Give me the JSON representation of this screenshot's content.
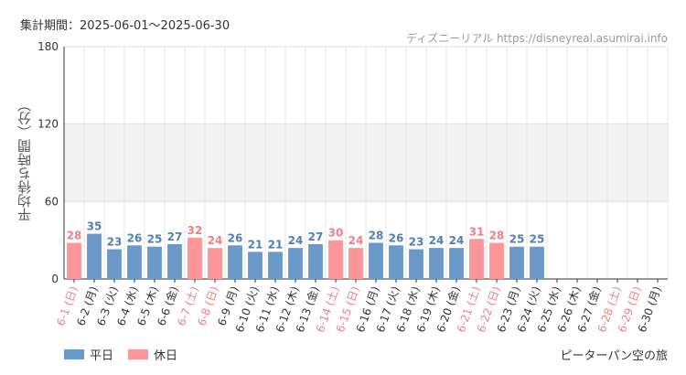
{
  "header": {
    "period": "集計期間：2025-06-01～2025-06-30",
    "credit": "ディズニーリアル https://disneyreal.asumirai.info"
  },
  "footer": {
    "attraction": "ピーターパン空の旅"
  },
  "colors": {
    "weekday": "#6a98c8",
    "holiday": "#fc9699",
    "weekday_text": "#4f7fb3",
    "holiday_text": "#f07f84"
  },
  "chart_data": {
    "type": "bar",
    "ylabel": "平均待ち時間（分）",
    "ylim": [
      0,
      180
    ],
    "yticks": [
      0,
      60,
      120,
      180
    ],
    "legend": [
      {
        "name": "平日",
        "type": "weekday"
      },
      {
        "name": "休日",
        "type": "holiday"
      }
    ],
    "categories": [
      "6-1 (日)",
      "6-2 (月)",
      "6-3 (火)",
      "6-4 (水)",
      "6-5 (木)",
      "6-6 (金)",
      "6-7 (土)",
      "6-8 (日)",
      "6-9 (月)",
      "6-10 (火)",
      "6-11 (水)",
      "6-12 (木)",
      "6-13 (金)",
      "6-14 (土)",
      "6-15 (日)",
      "6-16 (月)",
      "6-17 (火)",
      "6-18 (水)",
      "6-19 (木)",
      "6-20 (金)",
      "6-21 (土)",
      "6-22 (日)",
      "6-23 (月)",
      "6-24 (火)",
      "6-25 (水)",
      "6-26 (木)",
      "6-27 (金)",
      "6-28 (土)",
      "6-29 (日)",
      "6-30 (月)"
    ],
    "values": [
      28,
      35,
      23,
      26,
      25,
      27,
      32,
      24,
      26,
      21,
      21,
      24,
      27,
      30,
      24,
      28,
      26,
      23,
      24,
      24,
      31,
      28,
      25,
      25,
      null,
      null,
      null,
      null,
      null,
      null
    ],
    "day_type": [
      "holiday",
      "weekday",
      "weekday",
      "weekday",
      "weekday",
      "weekday",
      "holiday",
      "holiday",
      "weekday",
      "weekday",
      "weekday",
      "weekday",
      "weekday",
      "holiday",
      "holiday",
      "weekday",
      "weekday",
      "weekday",
      "weekday",
      "weekday",
      "holiday",
      "holiday",
      "weekday",
      "weekday",
      "weekday",
      "weekday",
      "weekday",
      "holiday",
      "holiday",
      "weekday"
    ]
  }
}
